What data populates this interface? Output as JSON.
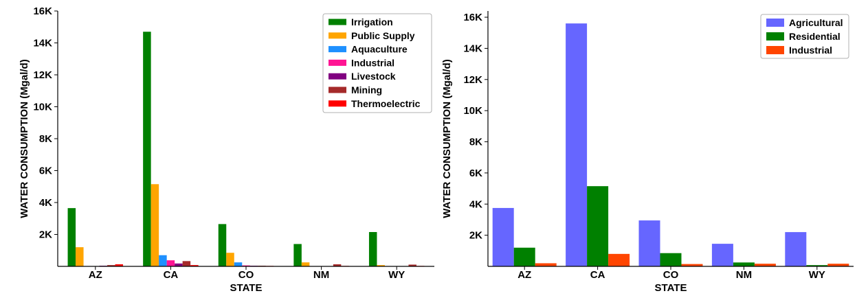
{
  "chart_data": [
    {
      "type": "bar",
      "title": "",
      "xlabel": "STATE",
      "ylabel": "WATER CONSUMPTION (Mgal/d)",
      "ylim": [
        0,
        16000
      ],
      "yticks": [
        2000,
        4000,
        6000,
        8000,
        10000,
        12000,
        14000,
        16000
      ],
      "ytick_labels": [
        "2K",
        "4K",
        "6K",
        "8K",
        "10K",
        "12K",
        "14K",
        "16K"
      ],
      "categories": [
        "AZ",
        "CA",
        "CO",
        "NM",
        "WY"
      ],
      "legend_position": "top-right",
      "grid": false,
      "series": [
        {
          "name": "Irrigation",
          "color": "#008000",
          "values": [
            3650,
            14700,
            2650,
            1400,
            2150
          ]
        },
        {
          "name": "Public Supply",
          "color": "#FFA500",
          "values": [
            1200,
            5150,
            850,
            250,
            80
          ]
        },
        {
          "name": "Aquaculture",
          "color": "#1E90FF",
          "values": [
            20,
            700,
            250,
            20,
            20
          ]
        },
        {
          "name": "Industrial",
          "color": "#FF1493",
          "values": [
            20,
            380,
            60,
            10,
            10
          ]
        },
        {
          "name": "Livestock",
          "color": "#800080",
          "values": [
            40,
            180,
            40,
            20,
            20
          ]
        },
        {
          "name": "Mining",
          "color": "#A52A2A",
          "values": [
            80,
            330,
            40,
            130,
            110
          ]
        },
        {
          "name": "Thermoelectric",
          "color": "#FF0000",
          "values": [
            130,
            80,
            30,
            30,
            30
          ]
        }
      ]
    },
    {
      "type": "bar",
      "title": "",
      "xlabel": "STATE",
      "ylabel": "WATER CONSUMPTION (Mgal/d)",
      "ylim": [
        0,
        16400
      ],
      "yticks": [
        2000,
        4000,
        6000,
        8000,
        10000,
        12000,
        14000,
        16000
      ],
      "ytick_labels": [
        "2K",
        "4K",
        "6K",
        "8K",
        "10K",
        "12K",
        "14K",
        "16K"
      ],
      "categories": [
        "AZ",
        "CA",
        "CO",
        "NM",
        "WY"
      ],
      "legend_position": "top-right",
      "grid": false,
      "series": [
        {
          "name": "Agricultural",
          "color": "#6666FF",
          "values": [
            3750,
            15600,
            2950,
            1450,
            2200
          ]
        },
        {
          "name": "Residential",
          "color": "#008000",
          "values": [
            1200,
            5150,
            850,
            250,
            80
          ]
        },
        {
          "name": "Industrial",
          "color": "#FF4500",
          "values": [
            200,
            800,
            150,
            170,
            170
          ]
        }
      ]
    }
  ]
}
